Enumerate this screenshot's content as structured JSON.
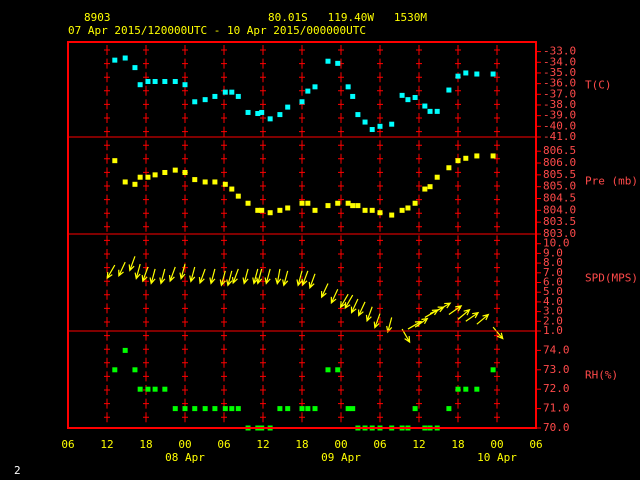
{
  "chart_data": {
    "type": "meteogram",
    "station": "8903",
    "location": "80.01S   119.40W   1530M",
    "period": "07 Apr 2015/120000UTC - 10 Apr 2015/000000UTC",
    "page_number": "2",
    "xlim": [
      0,
      72
    ],
    "xticks": [
      {
        "value": 0,
        "label": "06"
      },
      {
        "value": 6,
        "label": "12"
      },
      {
        "value": 12,
        "label": "18"
      },
      {
        "value": 18,
        "label": "00"
      },
      {
        "value": 24,
        "label": "06"
      },
      {
        "value": 30,
        "label": "12"
      },
      {
        "value": 36,
        "label": "18"
      },
      {
        "value": 42,
        "label": "00"
      },
      {
        "value": 48,
        "label": "06"
      },
      {
        "value": 54,
        "label": "12"
      },
      {
        "value": 60,
        "label": "18"
      },
      {
        "value": 66,
        "label": "00"
      },
      {
        "value": 72,
        "label": "06"
      }
    ],
    "date_labels": [
      {
        "value": 18,
        "label": "08 Apr"
      },
      {
        "value": 42,
        "label": "09 Apr"
      },
      {
        "value": 66,
        "label": "10 Apr"
      }
    ],
    "x": [
      7.2,
      8.8,
      10.3,
      11.1,
      12.3,
      13.4,
      14.9,
      16.5,
      18.0,
      19.5,
      21.1,
      22.6,
      24.2,
      25.2,
      26.2,
      27.7,
      29.2,
      29.8,
      31.1,
      32.6,
      33.8,
      36.0,
      36.9,
      38.0,
      40.0,
      41.5,
      43.1,
      43.8,
      44.6,
      45.7,
      46.8,
      48.0,
      49.8,
      51.4,
      52.3,
      53.4,
      54.9,
      55.7,
      56.8,
      58.6,
      60.0,
      61.2,
      62.9,
      65.4
    ],
    "panels": [
      {
        "type": "scatter",
        "label": "T(C)",
        "color": "#00ffff",
        "values": [
          -33.8,
          -33.6,
          -34.5,
          -36.1,
          -35.8,
          -35.8,
          -35.8,
          -35.8,
          -36.1,
          -37.7,
          -37.5,
          -37.2,
          -36.8,
          -36.8,
          -37.2,
          -38.7,
          -38.8,
          -38.7,
          -39.3,
          -38.9,
          -38.2,
          -37.7,
          -36.7,
          -36.3,
          -33.9,
          -34.1,
          -36.3,
          -37.2,
          -38.9,
          -39.6,
          -40.3,
          -40.0,
          -39.8,
          -37.1,
          -37.5,
          -37.3,
          -38.1,
          -38.6,
          -38.6,
          -36.6,
          -35.3,
          -35.0,
          -35.1,
          -35.1
        ],
        "ylim": [
          -41,
          -32.1
        ],
        "yticks": [
          {
            "value": -33,
            "label": "-33.0"
          },
          {
            "value": -34,
            "label": "-34.0"
          },
          {
            "value": -35,
            "label": "-35.0"
          },
          {
            "value": -36,
            "label": "-36.0"
          },
          {
            "value": -37,
            "label": "-37.0"
          },
          {
            "value": -38,
            "label": "-38.0"
          },
          {
            "value": -39,
            "label": "-39.0"
          },
          {
            "value": -40,
            "label": "-40.0"
          },
          {
            "value": -41,
            "label": "-41.0"
          }
        ]
      },
      {
        "type": "scatter",
        "label": "Pre (mb)",
        "color": "#ffff00",
        "values": [
          806.1,
          805.2,
          805.1,
          805.4,
          805.4,
          805.5,
          805.6,
          805.7,
          805.6,
          805.3,
          805.2,
          805.2,
          805.1,
          804.9,
          804.6,
          804.3,
          804.0,
          804.0,
          803.9,
          804.0,
          804.1,
          804.3,
          804.3,
          804.0,
          804.2,
          804.3,
          804.3,
          804.2,
          804.2,
          804.0,
          804.0,
          803.9,
          803.8,
          804.0,
          804.1,
          804.3,
          804.9,
          805.0,
          805.4,
          805.8,
          806.1,
          806.2,
          806.3,
          806.3
        ],
        "ylim": [
          803,
          807.1
        ],
        "yticks": [
          {
            "value": 806.5,
            "label": "806.5"
          },
          {
            "value": 806,
            "label": "806.0"
          },
          {
            "value": 805.5,
            "label": "805.5"
          },
          {
            "value": 805,
            "label": "805.0"
          },
          {
            "value": 804.5,
            "label": "804.5"
          },
          {
            "value": 804,
            "label": "804.0"
          },
          {
            "value": 803.5,
            "label": "803.5"
          },
          {
            "value": 803,
            "label": "803.0"
          }
        ]
      },
      {
        "type": "wind",
        "label": "SPD(MPS)",
        "color": "#ffff00",
        "values": [
          7.8,
          8.1,
          8.7,
          7.9,
          7.6,
          7.4,
          7.4,
          7.6,
          7.9,
          7.6,
          7.4,
          7.4,
          7.2,
          7.2,
          7.4,
          7.4,
          7.4,
          7.4,
          7.4,
          7.4,
          7.2,
          7.2,
          7.2,
          6.9,
          5.9,
          5.3,
          4.8,
          4.7,
          4.3,
          4.0,
          3.5,
          2.8,
          2.4,
          1.2,
          1.2,
          1.4,
          2.4,
          2.8,
          3.1,
          2.7,
          2.2,
          2.0,
          1.7,
          1.4
        ],
        "directions": [
          30,
          25,
          20,
          15,
          20,
          15,
          15,
          20,
          15,
          15,
          20,
          15,
          15,
          15,
          20,
          15,
          15,
          15,
          15,
          10,
          15,
          15,
          20,
          20,
          25,
          25,
          30,
          30,
          25,
          25,
          20,
          20,
          15,
          330,
          240,
          235,
          240,
          245,
          240,
          235,
          230,
          235,
          230,
          320
        ],
        "ylim": [
          1,
          11
        ],
        "yticks": [
          {
            "value": 10,
            "label": "10.0"
          },
          {
            "value": 9,
            "label": "9.0"
          },
          {
            "value": 8,
            "label": "8.0"
          },
          {
            "value": 7,
            "label": "7.0"
          },
          {
            "value": 6,
            "label": "6.0"
          },
          {
            "value": 5,
            "label": "5.0"
          },
          {
            "value": 4,
            "label": "4.0"
          },
          {
            "value": 3,
            "label": "3.0"
          },
          {
            "value": 2,
            "label": "2.0"
          },
          {
            "value": 1,
            "label": "1.0"
          }
        ]
      },
      {
        "type": "scatter",
        "label": "RH(%)",
        "color": "#00ff00",
        "values": [
          73,
          74,
          73,
          72,
          72,
          72,
          72,
          71,
          71,
          71,
          71,
          71,
          71,
          71,
          71,
          70,
          70,
          70,
          70,
          71,
          71,
          71,
          71,
          71,
          73,
          73,
          71,
          71,
          70,
          70,
          70,
          70,
          70,
          70,
          70,
          71,
          70,
          70,
          70,
          71,
          72,
          72,
          72,
          73
        ],
        "ylim": [
          70,
          75
        ],
        "yticks": [
          {
            "value": 74,
            "label": "74.0"
          },
          {
            "value": 73,
            "label": "73.0"
          },
          {
            "value": 72,
            "label": "72.0"
          },
          {
            "value": 71,
            "label": "71.0"
          },
          {
            "value": 70,
            "label": "70.0"
          }
        ]
      }
    ]
  }
}
